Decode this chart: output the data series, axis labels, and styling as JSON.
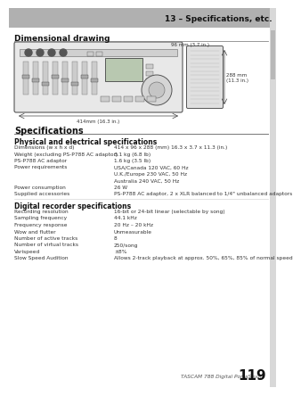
{
  "header_bg_color": "#b0b0b0",
  "header_text": "13 – Specifications, etc.",
  "header_text_color": "#111111",
  "page_bg_color": "#ffffff",
  "section1_title": "Dimensional drawing",
  "section2_title": "Specifications",
  "section3_title": "Physical and electrical specifications",
  "section4_title": "Digital recorder specifications",
  "footer_italic": "TASCAM 788 Digital PortaStudio",
  "footer_page": "119",
  "physical_specs": [
    [
      "Dimensions (w x h x d)",
      "414 x 96 x 288 (mm) 16.3 x 3.7 x 11.3 (in.)"
    ],
    [
      "Weight (excluding PS-P788 AC adaptor)",
      "3.1 kg (6.8 lb)"
    ],
    [
      "PS-P788 AC adaptor",
      "1.6 kg (3.5 lb)"
    ],
    [
      "Power requirements",
      "USA/Canada 120 VAC, 60 Hz"
    ],
    [
      "",
      "U.K./Europe 230 VAC, 50 Hz"
    ],
    [
      "",
      "Australia 240 VAC, 50 Hz"
    ],
    [
      "Power consumption",
      "26 W"
    ],
    [
      "Supplied accessories",
      "PS-P788 AC adaptor, 2 x XLR balanced to 1/4\" unbalanced adaptors"
    ]
  ],
  "digital_specs": [
    [
      "Recording resolution",
      "16-bit or 24-bit linear (selectable by song)"
    ],
    [
      "Sampling frequency",
      "44.1 kHz"
    ],
    [
      "Frequency response",
      "20 Hz – 20 kHz"
    ],
    [
      "Wow and flutter",
      "Unmeasurable"
    ],
    [
      "Number of active tracks",
      "8"
    ],
    [
      "Number of virtual tracks",
      "250/song"
    ],
    [
      "Varispeed",
      "±8%"
    ],
    [
      "Slow Speed Audition",
      "Allows 2-track playback at approx. 50%, 65%, 85% of normal speed"
    ]
  ],
  "dim_96mm": "96 mm (3.7 in.)",
  "dim_288mm": "288 mm\n(11.3 in.)",
  "dim_414mm": "414mm (16.3 in.)"
}
